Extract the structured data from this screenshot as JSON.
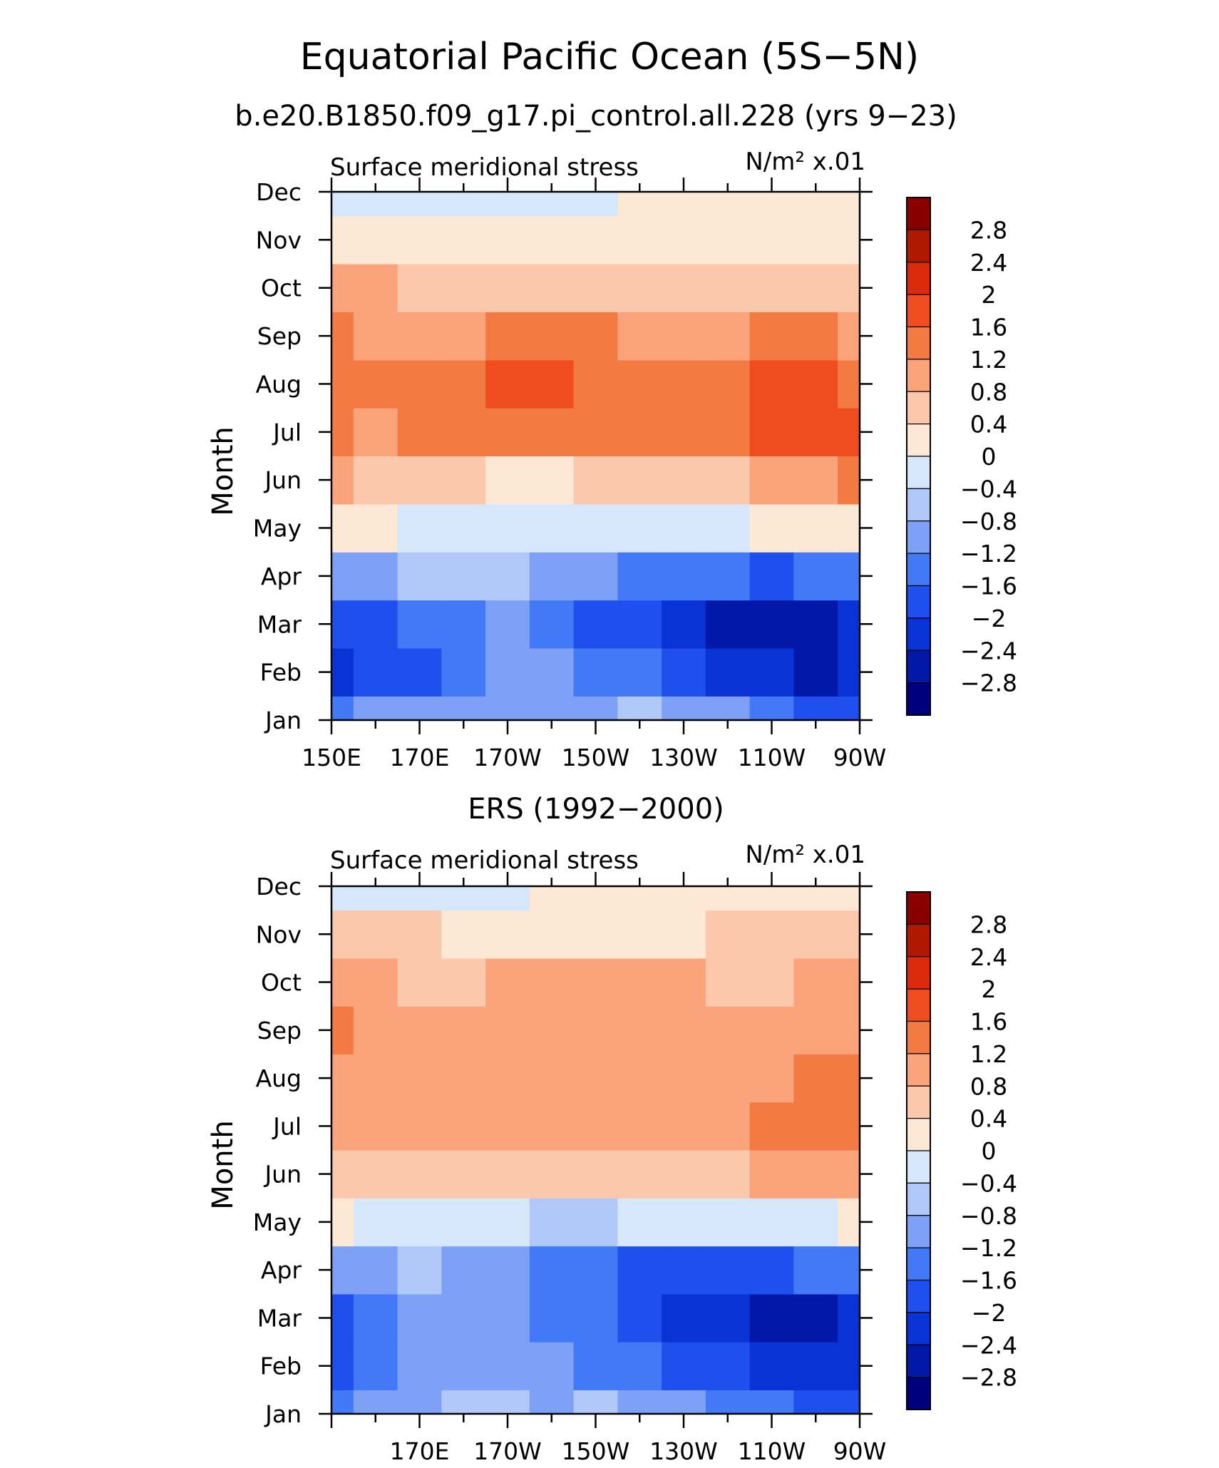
{
  "title": "Equatorial Pacific Ocean (5S−5N)",
  "colorbar": {
    "levels": [
      -2.8,
      -2.4,
      -2,
      -1.6,
      -1.2,
      -0.8,
      -0.4,
      0,
      0.4,
      0.8,
      1.2,
      1.6,
      2,
      2.4,
      2.8
    ],
    "labels": [
      "2.8",
      "2.4",
      "2",
      "1.6",
      "1.2",
      "0.8",
      "0.4",
      "0",
      "−0.4",
      "−0.8",
      "−1.2",
      "−1.6",
      "−2",
      "−2.4",
      "−2.8"
    ],
    "colors": [
      "#00007f",
      "#0318a8",
      "#0a33d6",
      "#1f50ee",
      "#4179f6",
      "#7ea1f7",
      "#b0c8f7",
      "#d6e7fb",
      "#fde7d5",
      "#fcc8ac",
      "#fba47c",
      "#f47a44",
      "#ee4d1f",
      "#dc2a0c",
      "#b01802",
      "#8a0000"
    ]
  },
  "panels": [
    {
      "subtitle": "b.e20.B1850.f09_g17.pi_control.all.228 (yrs 9−23)",
      "left_label": "Surface meridional stress",
      "right_label": "N/m² x.01",
      "ylabel": "Month",
      "xticks": [
        "150E",
        "170E",
        "170W",
        "150W",
        "130W",
        "110W",
        "90W"
      ],
      "yticks": [
        "Jan",
        "Feb",
        "Mar",
        "Apr",
        "May",
        "Jun",
        "Jul",
        "Aug",
        "Sep",
        "Oct",
        "Nov",
        "Dec"
      ]
    },
    {
      "subtitle": "ERS (1992−2000)",
      "left_label": "Surface meridional stress",
      "right_label": "N/m² x.01",
      "ylabel": "Month",
      "xticks": [
        "170E",
        "170W",
        "150W",
        "130W",
        "110W",
        "90W"
      ],
      "yticks": [
        "Jan",
        "Feb",
        "Mar",
        "Apr",
        "May",
        "Jun",
        "Jul",
        "Aug",
        "Sep",
        "Oct",
        "Nov",
        "Dec"
      ]
    }
  ],
  "chart_data": [
    {
      "type": "heatmap",
      "title": "b.e20.B1850.f09_g17.pi_control.all.228 (yrs 9−23)",
      "xlabel": "",
      "ylabel": "Month",
      "x": [
        150,
        160,
        170,
        180,
        190,
        200,
        210,
        220,
        230,
        240,
        250,
        260,
        270
      ],
      "x_units": "longitude degrees east (190 = 170W, 270 = 90W)",
      "y": [
        "Jan",
        "Feb",
        "Mar",
        "Apr",
        "May",
        "Jun",
        "Jul",
        "Aug",
        "Sep",
        "Oct",
        "Nov",
        "Dec"
      ],
      "z": [
        [
          -1.3,
          -1.2,
          -1.2,
          -1.2,
          -1.1,
          -1.0,
          -0.9,
          -0.8,
          -1.0,
          -1.2,
          -1.5,
          -1.7,
          -1.9
        ],
        [
          -2.3,
          -2.0,
          -1.9,
          -1.4,
          -1.2,
          -1.2,
          -1.3,
          -1.6,
          -1.9,
          -2.2,
          -2.4,
          -2.5,
          -2.3
        ],
        [
          -2.0,
          -1.8,
          -1.6,
          -1.3,
          -1.2,
          -1.4,
          -1.7,
          -2.0,
          -2.2,
          -2.6,
          -2.8,
          -2.6,
          -2.3
        ],
        [
          -0.9,
          -0.9,
          -0.7,
          -0.6,
          -0.7,
          -1.0,
          -1.2,
          -1.3,
          -1.4,
          -1.6,
          -1.7,
          -1.6,
          -1.4
        ],
        [
          0.1,
          0.0,
          -0.1,
          -0.2,
          -0.3,
          -0.4,
          -0.4,
          -0.3,
          -0.2,
          -0.1,
          0.0,
          0.1,
          0.2
        ],
        [
          0.9,
          0.6,
          0.5,
          0.4,
          0.3,
          0.3,
          0.4,
          0.5,
          0.6,
          0.7,
          0.9,
          1.1,
          1.3
        ],
        [
          1.3,
          1.1,
          1.2,
          1.3,
          1.3,
          1.3,
          1.3,
          1.3,
          1.4,
          1.5,
          1.8,
          1.9,
          1.8
        ],
        [
          1.4,
          1.2,
          1.3,
          1.5,
          1.6,
          1.6,
          1.5,
          1.2,
          1.2,
          1.3,
          1.7,
          1.8,
          1.5
        ],
        [
          1.3,
          1.1,
          1.1,
          1.1,
          1.2,
          1.3,
          1.2,
          1.0,
          0.9,
          1.0,
          1.2,
          1.2,
          1.0
        ],
        [
          0.9,
          0.8,
          0.7,
          0.7,
          0.7,
          0.7,
          0.7,
          0.7,
          0.6,
          0.6,
          0.7,
          0.7,
          0.6
        ],
        [
          0.2,
          0.2,
          0.3,
          0.2,
          0.1,
          0.0,
          0.0,
          0.1,
          0.2,
          0.3,
          0.3,
          0.3,
          0.3
        ],
        [
          -0.2,
          -0.3,
          -0.2,
          -0.2,
          -0.2,
          -0.2,
          -0.1,
          0.0,
          0.1,
          0.1,
          0.1,
          0.1,
          0.1
        ]
      ],
      "colorbar_levels": [
        -2.8,
        -2.4,
        -2,
        -1.6,
        -1.2,
        -0.8,
        -0.4,
        0,
        0.4,
        0.8,
        1.2,
        1.6,
        2,
        2.4,
        2.8
      ],
      "xlim": [
        150,
        270
      ],
      "grid": false
    },
    {
      "type": "heatmap",
      "title": "ERS (1992−2000)",
      "xlabel": "",
      "ylabel": "Month",
      "x": [
        150,
        160,
        170,
        180,
        190,
        200,
        210,
        220,
        230,
        240,
        250,
        260,
        270
      ],
      "x_units": "longitude degrees east (190 = 170W, 270 = 90W)",
      "y": [
        "Jan",
        "Feb",
        "Mar",
        "Apr",
        "May",
        "Jun",
        "Jul",
        "Aug",
        "Sep",
        "Oct",
        "Nov",
        "Dec"
      ],
      "z": [
        [
          -1.4,
          -1.2,
          -0.9,
          -0.7,
          -0.8,
          -0.9,
          -0.8,
          -0.9,
          -1.0,
          -1.3,
          -1.5,
          -1.7,
          -1.9
        ],
        [
          -1.9,
          -1.6,
          -1.2,
          -1.0,
          -1.1,
          -1.2,
          -1.3,
          -1.5,
          -1.7,
          -2.0,
          -2.2,
          -2.4,
          -2.3
        ],
        [
          -2.0,
          -1.6,
          -1.1,
          -1.0,
          -1.2,
          -1.4,
          -1.6,
          -1.9,
          -2.1,
          -2.4,
          -2.6,
          -2.7,
          -2.4
        ],
        [
          -0.9,
          -0.9,
          -0.8,
          -0.9,
          -1.1,
          -1.3,
          -1.5,
          -1.7,
          -1.7,
          -1.8,
          -1.8,
          -1.6,
          -1.4
        ],
        [
          0.1,
          -0.1,
          -0.2,
          -0.3,
          -0.4,
          -0.5,
          -0.5,
          -0.4,
          -0.3,
          -0.3,
          -0.2,
          -0.1,
          0.0
        ],
        [
          0.7,
          0.6,
          0.5,
          0.4,
          0.4,
          0.4,
          0.4,
          0.5,
          0.5,
          0.6,
          0.8,
          1.0,
          1.1
        ],
        [
          1.0,
          1.0,
          0.9,
          1.0,
          0.9,
          0.9,
          1.0,
          1.1,
          1.1,
          1.0,
          1.2,
          1.3,
          1.2
        ],
        [
          1.1,
          1.0,
          0.9,
          0.9,
          1.0,
          1.0,
          1.1,
          1.1,
          1.0,
          0.9,
          1.1,
          1.2,
          1.2
        ],
        [
          1.3,
          1.0,
          0.8,
          0.9,
          1.0,
          0.9,
          1.0,
          1.0,
          1.0,
          0.9,
          0.9,
          1.0,
          1.1
        ],
        [
          0.9,
          0.8,
          0.7,
          0.7,
          0.8,
          0.8,
          0.9,
          0.9,
          0.8,
          0.7,
          0.7,
          0.8,
          1.0
        ],
        [
          0.4,
          0.4,
          0.4,
          0.3,
          0.3,
          0.3,
          0.3,
          0.3,
          0.3,
          0.4,
          0.6,
          0.6,
          0.7
        ],
        [
          -0.2,
          -0.2,
          -0.3,
          -0.2,
          -0.1,
          0.0,
          0.1,
          0.1,
          0.2,
          0.3,
          0.3,
          0.3,
          0.2
        ]
      ],
      "colorbar_levels": [
        -2.8,
        -2.4,
        -2,
        -1.6,
        -1.2,
        -0.8,
        -0.4,
        0,
        0.4,
        0.8,
        1.2,
        1.6,
        2,
        2.4,
        2.8
      ],
      "xlim": [
        150,
        270
      ],
      "grid": false
    }
  ]
}
